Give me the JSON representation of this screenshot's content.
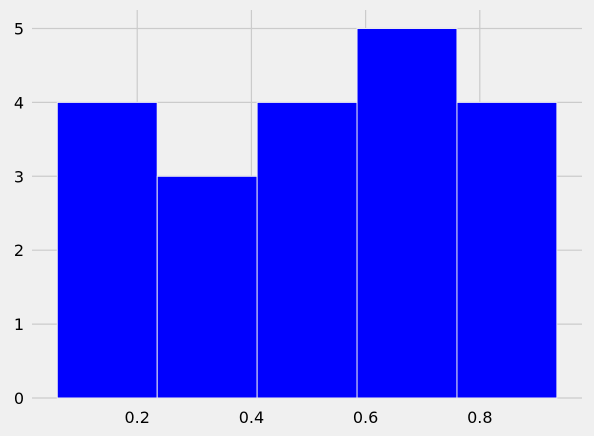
{
  "chart_data": {
    "type": "bar",
    "chart_kind": "histogram",
    "bins": [
      {
        "start": 0.06,
        "end": 0.235,
        "count": 4
      },
      {
        "start": 0.235,
        "end": 0.41,
        "count": 3
      },
      {
        "start": 0.41,
        "end": 0.585,
        "count": 4
      },
      {
        "start": 0.585,
        "end": 0.76,
        "count": 5
      },
      {
        "start": 0.76,
        "end": 0.935,
        "count": 4
      }
    ],
    "xlim": [
      0.0157,
      0.979
    ],
    "ylim": [
      0,
      5.25
    ],
    "x_ticks": [
      0.2,
      0.4,
      0.6,
      0.8
    ],
    "x_tick_labels": [
      "0.2",
      "0.4",
      "0.6",
      "0.8"
    ],
    "y_ticks": [
      0,
      1,
      2,
      3,
      4,
      5
    ],
    "y_tick_labels": [
      "0",
      "1",
      "2",
      "3",
      "4",
      "5"
    ],
    "title": "",
    "xlabel": "",
    "ylabel": "",
    "grid": true,
    "colors": {
      "bar": "#0000ff",
      "bar_edge": "#f0f0f0",
      "background": "#f0f0f0",
      "grid": "#cbcbcb",
      "text": "#000000"
    }
  }
}
